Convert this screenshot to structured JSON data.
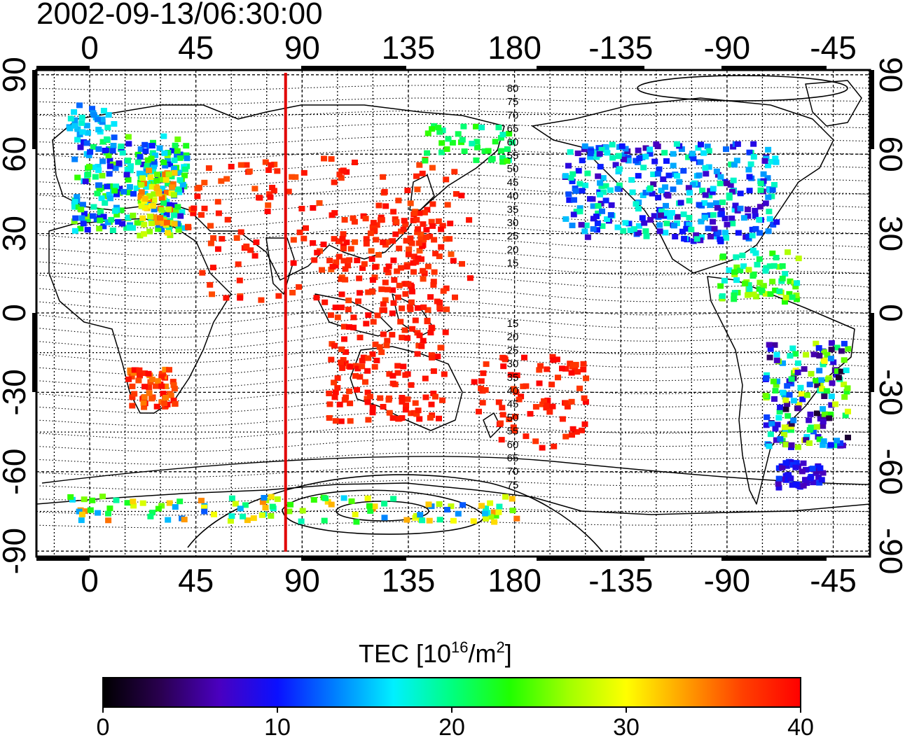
{
  "title": "2002-09-13/06:30:00",
  "lon_ticks": [
    "0",
    "45",
    "90",
    "135",
    "180",
    "-135",
    "-90",
    "-45"
  ],
  "lat_ticks": [
    "90",
    "60",
    "30",
    "0",
    "-30",
    "-60",
    "-90"
  ],
  "contour_labels_north": [
    "80",
    "75",
    "70",
    "65",
    "60",
    "55",
    "50",
    "45",
    "40",
    "35",
    "30",
    "25",
    "20",
    "15"
  ],
  "contour_labels_south": [
    "15",
    "20",
    "25",
    "30",
    "35",
    "40",
    "45",
    "50",
    "55",
    "60",
    "65",
    "70",
    "75"
  ],
  "colorbar": {
    "title_prefix": "TEC  [10",
    "title_exp1": "16",
    "title_mid": "/m",
    "title_exp2": "2",
    "title_suffix": "]",
    "tick_labels": [
      "0",
      "10",
      "20",
      "30",
      "40"
    ],
    "min": 0,
    "max": 40,
    "stops": [
      "#000000",
      "#2a0050",
      "#4a00c0",
      "#0a10ff",
      "#0080ff",
      "#00f0ff",
      "#00ff80",
      "#20ff00",
      "#a0ff00",
      "#ffff00",
      "#ffa000",
      "#ff4000",
      "#ff0000"
    ]
  },
  "terminator_longitude": 83,
  "colors": {
    "terminator": "#e00000",
    "frame": "#000000"
  }
}
